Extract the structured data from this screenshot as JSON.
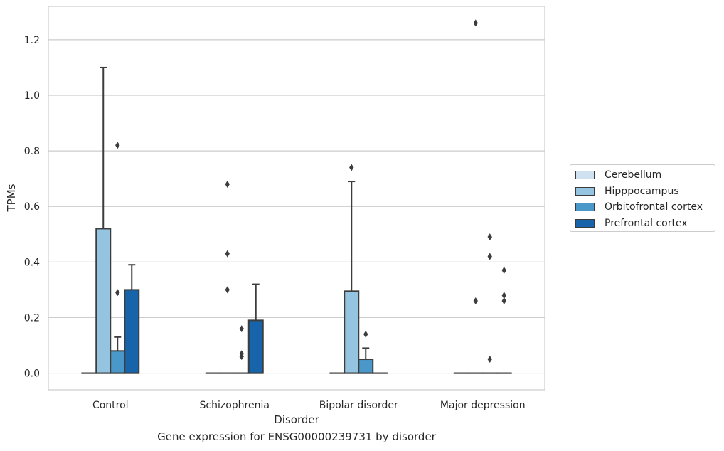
{
  "caption": "Gene expression for ENSG00000239731 by disorder",
  "chart_data": {
    "type": "box",
    "xlabel": "Disorder",
    "ylabel": "TPMs",
    "ylim": [
      -0.06,
      1.32
    ],
    "yticks": [
      0.0,
      0.2,
      0.4,
      0.6,
      0.8,
      1.0,
      1.2
    ],
    "ytick_labels": [
      "0.0",
      "0.2",
      "0.4",
      "0.6",
      "0.8",
      "1.0",
      "1.2"
    ],
    "grid": "horizontal",
    "legend_position": "right-outside",
    "categories": [
      "Control",
      "Schizophrenia",
      "Bipolar disorder",
      "Major depression"
    ],
    "series": [
      {
        "name": "Cerebellum",
        "color": "#d0e1f2",
        "boxes": [
          {
            "q1": 0,
            "median": 0,
            "q3": 0,
            "whisker_low": 0,
            "whisker_high": 0,
            "outliers": []
          },
          {
            "q1": 0,
            "median": 0,
            "q3": 0,
            "whisker_low": 0,
            "whisker_high": 0,
            "outliers": []
          },
          {
            "q1": 0,
            "median": 0,
            "q3": 0,
            "whisker_low": 0,
            "whisker_high": 0,
            "outliers": []
          },
          {
            "q1": 0,
            "median": 0,
            "q3": 0,
            "whisker_low": 0,
            "whisker_high": 0,
            "outliers": []
          }
        ]
      },
      {
        "name": "Hipppocampus",
        "color": "#94c4df",
        "boxes": [
          {
            "q1": 0,
            "median": 0,
            "q3": 0.52,
            "whisker_low": 0,
            "whisker_high": 1.1,
            "outliers": []
          },
          {
            "q1": 0,
            "median": 0,
            "q3": 0,
            "whisker_low": 0,
            "whisker_high": 0,
            "outliers": [
              0.68,
              0.43,
              0.3
            ]
          },
          {
            "q1": 0,
            "median": 0,
            "q3": 0.295,
            "whisker_low": 0,
            "whisker_high": 0.69,
            "outliers": [
              0.74
            ]
          },
          {
            "q1": 0,
            "median": 0,
            "q3": 0,
            "whisker_low": 0,
            "whisker_high": 0,
            "outliers": [
              1.26,
              0.26
            ]
          }
        ]
      },
      {
        "name": "Orbitofrontal cortex",
        "color": "#4a98c9",
        "boxes": [
          {
            "q1": 0,
            "median": 0,
            "q3": 0.08,
            "whisker_low": 0,
            "whisker_high": 0.13,
            "outliers": [
              0.82,
              0.29
            ]
          },
          {
            "q1": 0,
            "median": 0,
            "q3": 0,
            "whisker_low": 0,
            "whisker_high": 0,
            "outliers": [
              0.16,
              0.07,
              0.06
            ]
          },
          {
            "q1": 0,
            "median": 0,
            "q3": 0.05,
            "whisker_low": 0,
            "whisker_high": 0.09,
            "outliers": [
              0.14
            ]
          },
          {
            "q1": 0,
            "median": 0,
            "q3": 0,
            "whisker_low": 0,
            "whisker_high": 0,
            "outliers": [
              0.49,
              0.42,
              0.05
            ]
          }
        ]
      },
      {
        "name": "Prefrontal cortex",
        "color": "#1764ab",
        "boxes": [
          {
            "q1": 0,
            "median": 0,
            "q3": 0.3,
            "whisker_low": 0,
            "whisker_high": 0.39,
            "outliers": []
          },
          {
            "q1": 0,
            "median": 0,
            "q3": 0.19,
            "whisker_low": 0,
            "whisker_high": 0.32,
            "outliers": []
          },
          {
            "q1": 0,
            "median": 0,
            "q3": 0,
            "whisker_low": 0,
            "whisker_high": 0,
            "outliers": []
          },
          {
            "q1": 0,
            "median": 0,
            "q3": 0,
            "whisker_low": 0,
            "whisker_high": 0,
            "outliers": [
              0.37,
              0.26,
              0.28
            ]
          }
        ]
      }
    ]
  }
}
